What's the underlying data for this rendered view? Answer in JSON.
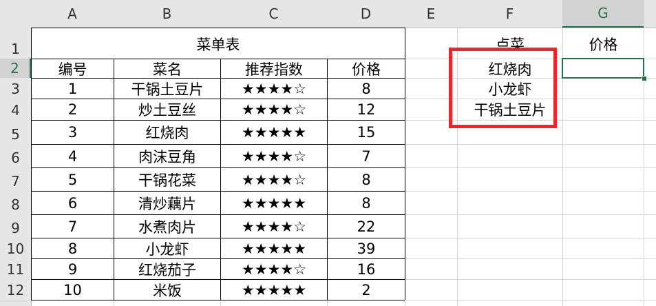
{
  "column_headers": [
    "A",
    "B",
    "C",
    "D",
    "E",
    "F",
    "G"
  ],
  "row_headers": [
    1,
    2,
    3,
    4,
    5,
    6,
    7,
    8,
    9,
    10,
    11,
    12
  ],
  "menu_table": {
    "title": "菜单表",
    "header": [
      "编号",
      "菜名",
      "推荐指数",
      "价格"
    ],
    "rows": [
      [
        1,
        "干锅土豆片",
        "★★★★☆",
        8
      ],
      [
        2,
        "炒土豆丝",
        "★★★★☆",
        12
      ],
      [
        3,
        "红烧肉",
        "★★★★★",
        15
      ],
      [
        4,
        "肉沫豆角",
        "★★★★☆",
        7
      ],
      [
        5,
        "干锅花菜",
        "★★★★☆",
        8
      ],
      [
        6,
        "清炒藕片",
        "★★★★★",
        8
      ],
      [
        7,
        "水煮肉片",
        "★★★★☆",
        22
      ],
      [
        8,
        "小龙虾",
        "★★★★★",
        39
      ],
      [
        9,
        "红烧茄子",
        "★★★★☆",
        16
      ],
      [
        10,
        "米饭",
        "★★★★★",
        2
      ]
    ]
  },
  "order": {
    "header": "点菜",
    "price_header": "价格",
    "items": [
      "红烧肉",
      "小龙虾",
      "干锅土豆片"
    ]
  }
}
